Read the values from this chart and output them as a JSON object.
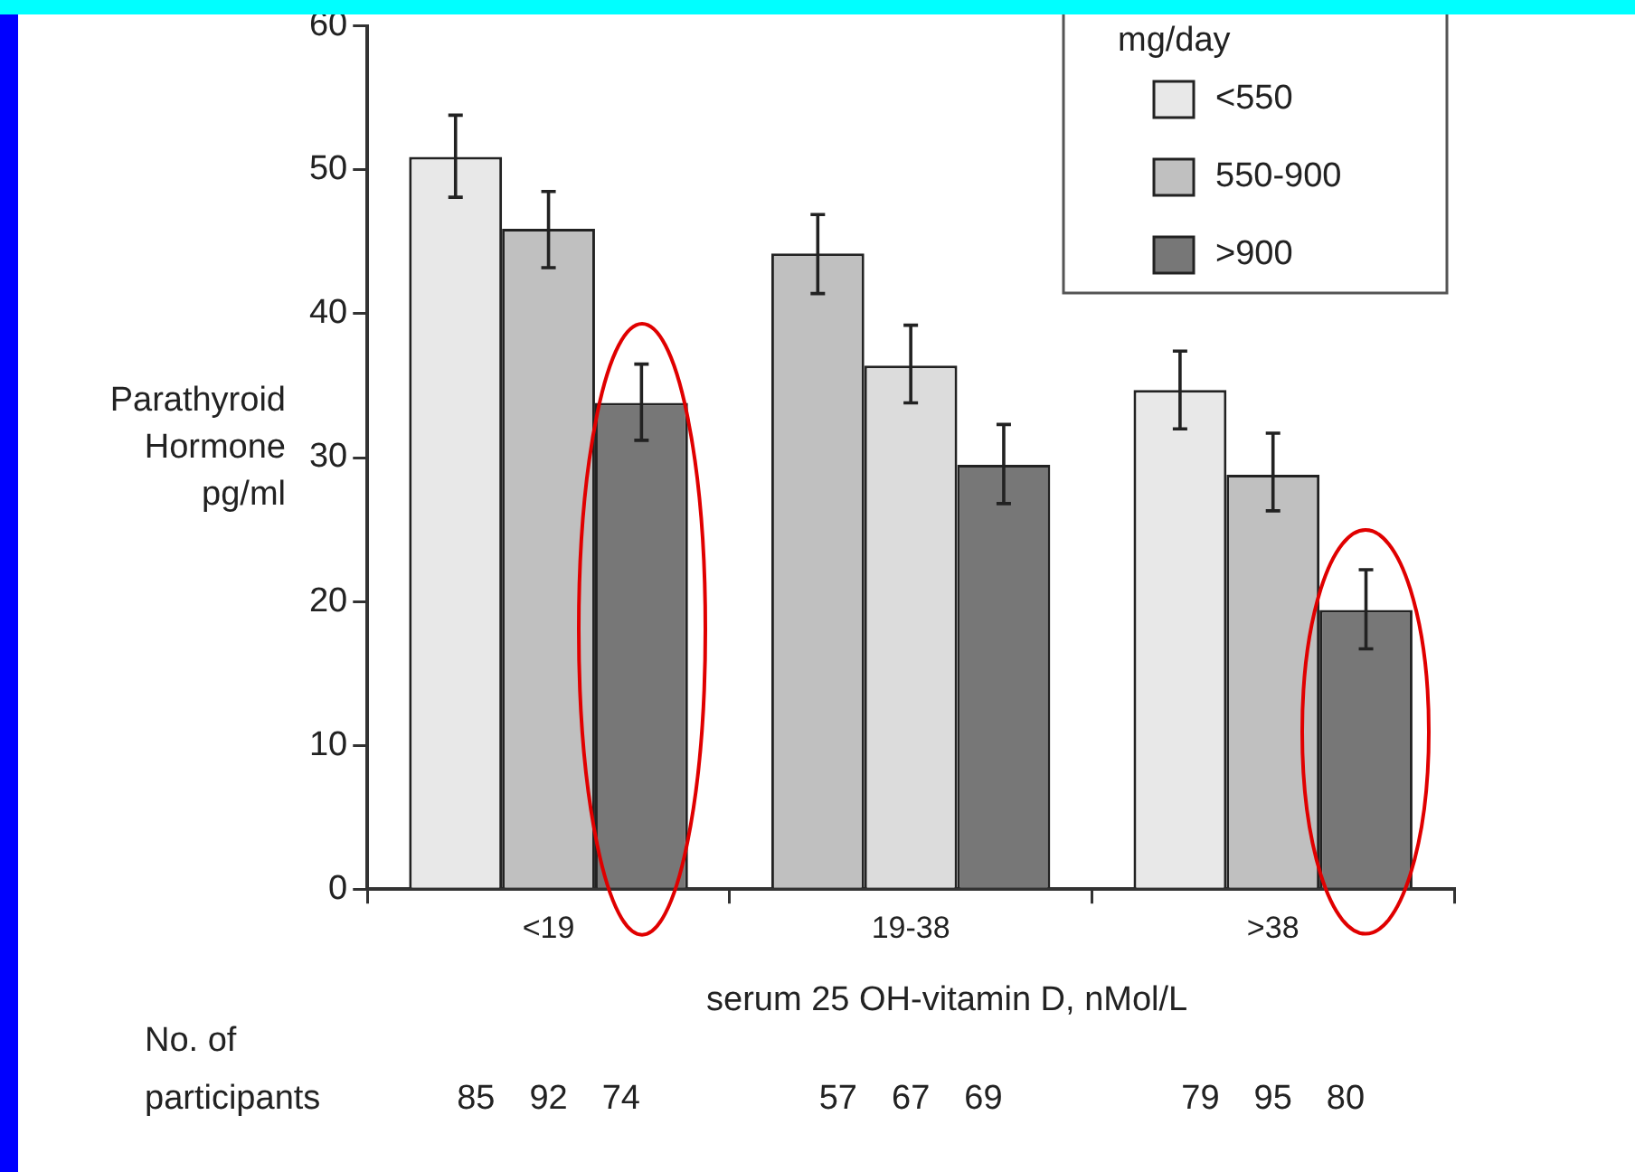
{
  "chart_data": {
    "type": "bar",
    "ylabel": "Parathyroid Hormone pg/ml",
    "xlabel": "serum 25 OH-vitamin D, nMol/L",
    "legend_title": "mg/day",
    "categories": [
      "<19",
      "19-38",
      ">38"
    ],
    "series": [
      {
        "name": "<550",
        "color": "#e8e8e8",
        "colors": [
          "#e8e8e8",
          "#c0c0c0",
          "#e8e8e8"
        ],
        "values": [
          50.9,
          44.2,
          34.7
        ],
        "errors": [
          [
            48.1,
            53.8
          ],
          [
            41.4,
            46.9
          ],
          [
            32,
            37.4
          ]
        ]
      },
      {
        "name": "550-900",
        "color": "#c0c0c0",
        "colors": [
          "#c0c0c0",
          "#dcdcdc",
          "#c0c0c0"
        ],
        "values": [
          45.9,
          36.4,
          28.8
        ],
        "errors": [
          [
            43.2,
            48.5
          ],
          [
            33.8,
            39.2
          ],
          [
            26.3,
            31.7
          ]
        ]
      },
      {
        "name": ">900",
        "color": "#777777",
        "colors": [
          "#777777",
          "#777777",
          "#777777"
        ],
        "values": [
          33.8,
          29.5,
          19.4
        ],
        "errors": [
          [
            31.2,
            36.5
          ],
          [
            26.8,
            32.3
          ],
          [
            16.7,
            22.2
          ]
        ]
      }
    ],
    "ylim": [
      0,
      60
    ],
    "yticks": [
      0,
      10,
      20,
      30,
      40,
      50,
      60
    ],
    "grid": false,
    "legend": "top right",
    "annotations": [
      "No. of participants",
      "85  92  74",
      "57  67  69",
      "79  95  80"
    ]
  }
}
